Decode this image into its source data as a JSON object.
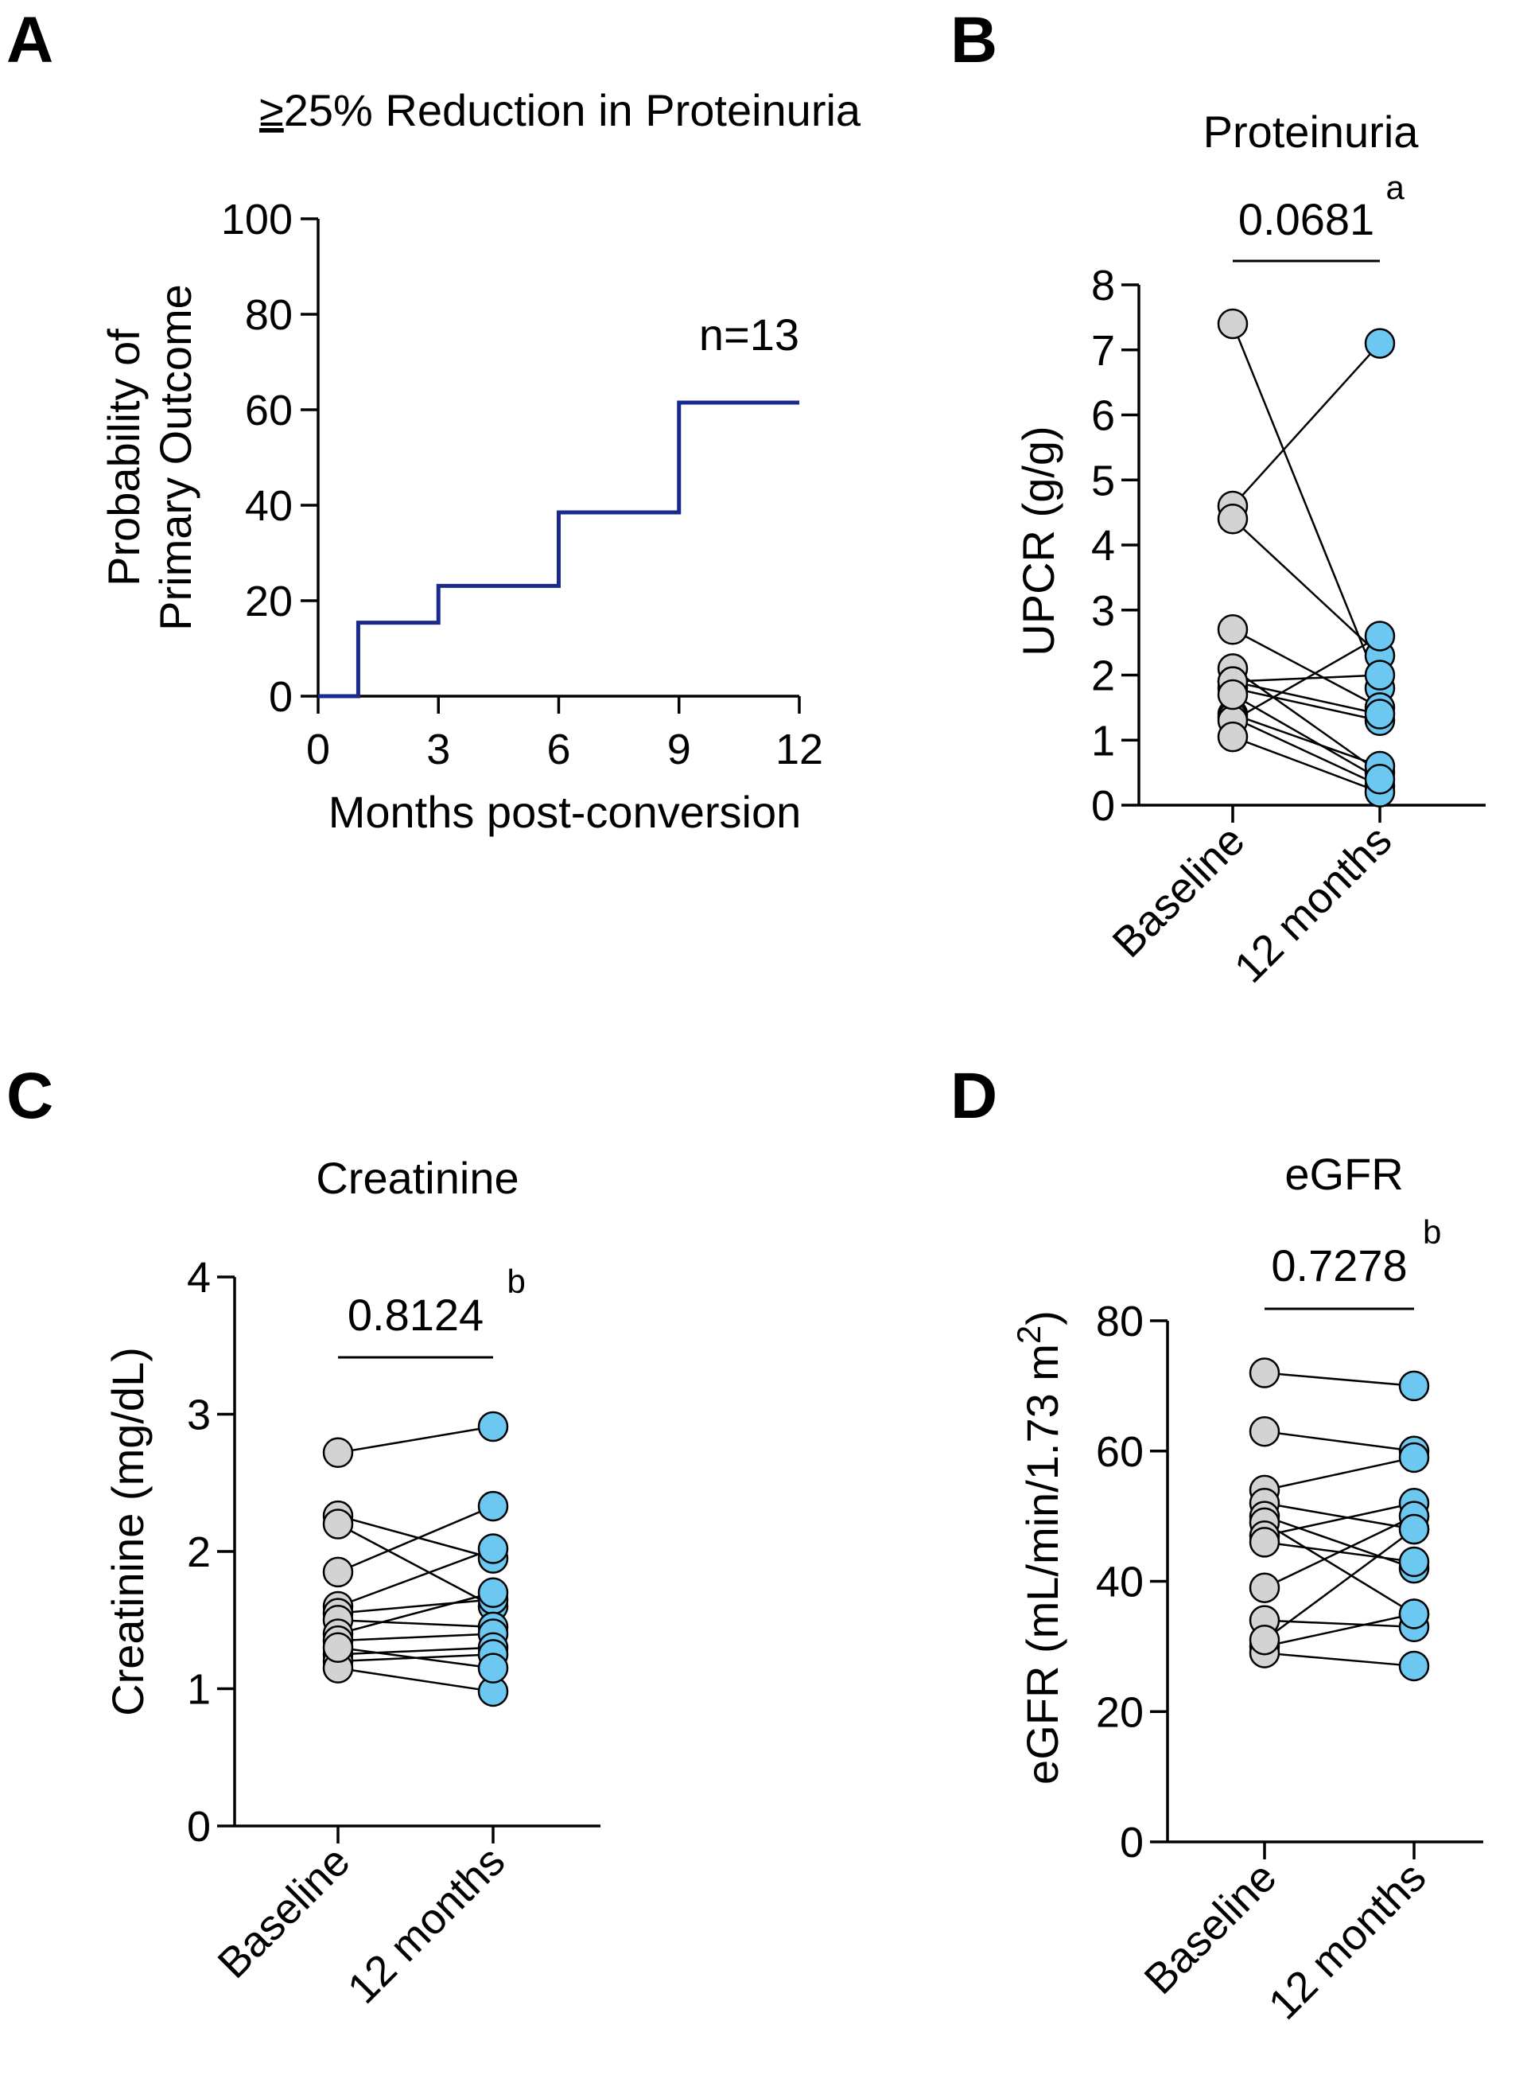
{
  "chart_data": [
    {
      "panel": "A",
      "type": "line",
      "step": true,
      "title": "≥25% Reduction in Proteinuria",
      "title_prefix": "≥",
      "title_rest": "25% Reduction in Proteinuria",
      "xlabel": "Months post-conversion",
      "ylabel": [
        "Probability of",
        "Primary Outcome"
      ],
      "annotation": "n=13",
      "xlim": [
        0,
        12
      ],
      "ylim": [
        0,
        100
      ],
      "xticks": [
        "0",
        "3",
        "6",
        "9",
        "12"
      ],
      "yticks": [
        "0",
        "20",
        "40",
        "60",
        "80",
        "100"
      ],
      "series": [
        {
          "name": "Primary outcome",
          "color": "#1a2a8c",
          "x": [
            0,
            1,
            3,
            6,
            9,
            12
          ],
          "y": [
            0,
            15.4,
            23.1,
            38.5,
            61.5,
            61.5
          ]
        }
      ]
    },
    {
      "panel": "B",
      "type": "scatter",
      "paired": true,
      "title": "Proteinuria",
      "ylabel": "UPCR (g/g)",
      "categories": [
        "Baseline",
        "12 months"
      ],
      "ylim": [
        0,
        8
      ],
      "yticks": [
        "0",
        "1",
        "2",
        "3",
        "4",
        "5",
        "6",
        "7",
        "8"
      ],
      "p_value": "0.0681",
      "p_note": "a",
      "colors": {
        "Baseline": "#d3d3d3",
        "12 months": "#6cc8f0"
      },
      "pairs": [
        [
          7.4,
          1.8
        ],
        [
          4.6,
          7.1
        ],
        [
          4.4,
          2.3
        ],
        [
          2.7,
          1.5
        ],
        [
          2.1,
          0.5
        ],
        [
          1.9,
          2.0
        ],
        [
          1.8,
          1.3
        ],
        [
          1.4,
          0.6
        ],
        [
          1.35,
          0.3
        ],
        [
          1.3,
          2.6
        ],
        [
          1.05,
          0.2
        ],
        [
          1.9,
          1.4
        ],
        [
          1.7,
          0.4
        ]
      ]
    },
    {
      "panel": "C",
      "type": "scatter",
      "paired": true,
      "title": "Creatinine",
      "ylabel": "Creatinine (mg/dL)",
      "categories": [
        "Baseline",
        "12 months"
      ],
      "ylim": [
        0,
        4
      ],
      "yticks": [
        "0",
        "1",
        "2",
        "3",
        "4"
      ],
      "p_value": "0.8124",
      "p_note": "b",
      "colors": {
        "Baseline": "#d3d3d3",
        "12 months": "#6cc8f0"
      },
      "pairs": [
        [
          2.72,
          2.91
        ],
        [
          2.26,
          1.95
        ],
        [
          2.2,
          1.6
        ],
        [
          1.85,
          2.33
        ],
        [
          1.6,
          2.02
        ],
        [
          1.55,
          1.65
        ],
        [
          1.5,
          1.45
        ],
        [
          1.4,
          1.7
        ],
        [
          1.35,
          1.4
        ],
        [
          1.25,
          1.3
        ],
        [
          1.2,
          1.25
        ],
        [
          1.15,
          0.98
        ],
        [
          1.3,
          1.15
        ]
      ]
    },
    {
      "panel": "D",
      "type": "scatter",
      "paired": true,
      "title": "eGFR",
      "ylabel": "eGFR (mL/min/1.73 m²)",
      "ylabel_main": "eGFR (mL/min/1.73 m",
      "ylabel_sup": "2",
      "ylabel_end": ")",
      "categories": [
        "Baseline",
        "12 months"
      ],
      "ylim": [
        0,
        80
      ],
      "yticks": [
        "0",
        "20",
        "40",
        "60",
        "80"
      ],
      "p_value": "0.7278",
      "p_note": "b",
      "colors": {
        "Baseline": "#d3d3d3",
        "12 months": "#6cc8f0"
      },
      "pairs": [
        [
          72,
          70
        ],
        [
          63,
          60
        ],
        [
          54,
          59
        ],
        [
          52,
          48
        ],
        [
          50,
          42
        ],
        [
          49,
          35
        ],
        [
          47,
          52
        ],
        [
          46,
          43
        ],
        [
          39,
          50
        ],
        [
          34,
          33
        ],
        [
          30,
          35
        ],
        [
          29,
          27
        ],
        [
          31,
          48
        ]
      ]
    }
  ]
}
